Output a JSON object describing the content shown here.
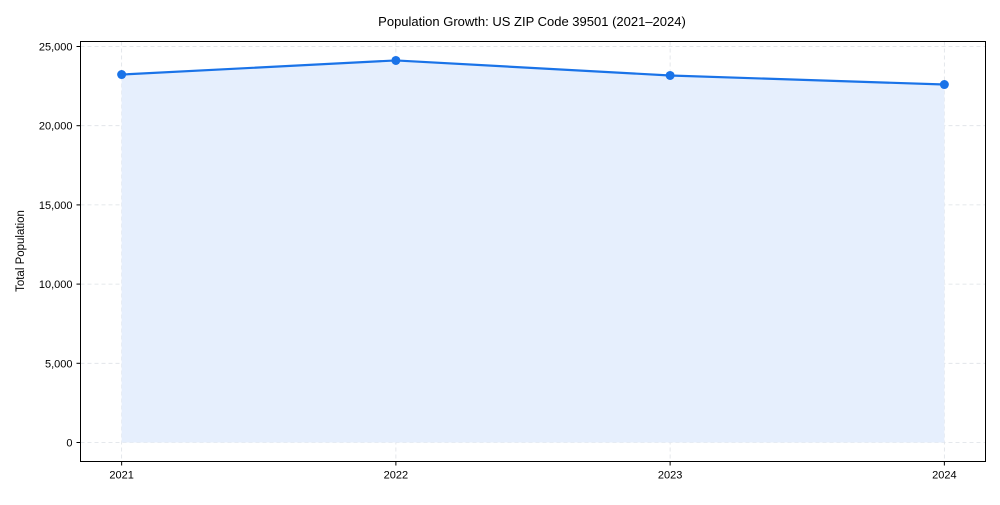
{
  "chart_data": {
    "type": "area",
    "title": "Population Growth: US ZIP Code 39501 (2021–2024)",
    "xlabel": "",
    "ylabel": "Total Population",
    "x": [
      2021,
      2022,
      2023,
      2024
    ],
    "x_tick_labels": [
      "2021",
      "2022",
      "2023",
      "2024"
    ],
    "series": [
      {
        "name": "Total Population",
        "values": [
          23230,
          24120,
          23170,
          22600
        ],
        "color": "#1a73e8",
        "fill": "#e6effd"
      }
    ],
    "y_ticks": [
      0,
      5000,
      10000,
      15000,
      20000,
      25000
    ],
    "y_tick_labels": [
      "0",
      "5,000",
      "10,000",
      "15,000",
      "20,000",
      "25,000"
    ],
    "xlim": [
      2020.85,
      2024.15
    ],
    "ylim": [
      -1200,
      25316
    ],
    "grid": true,
    "legend": "none"
  }
}
